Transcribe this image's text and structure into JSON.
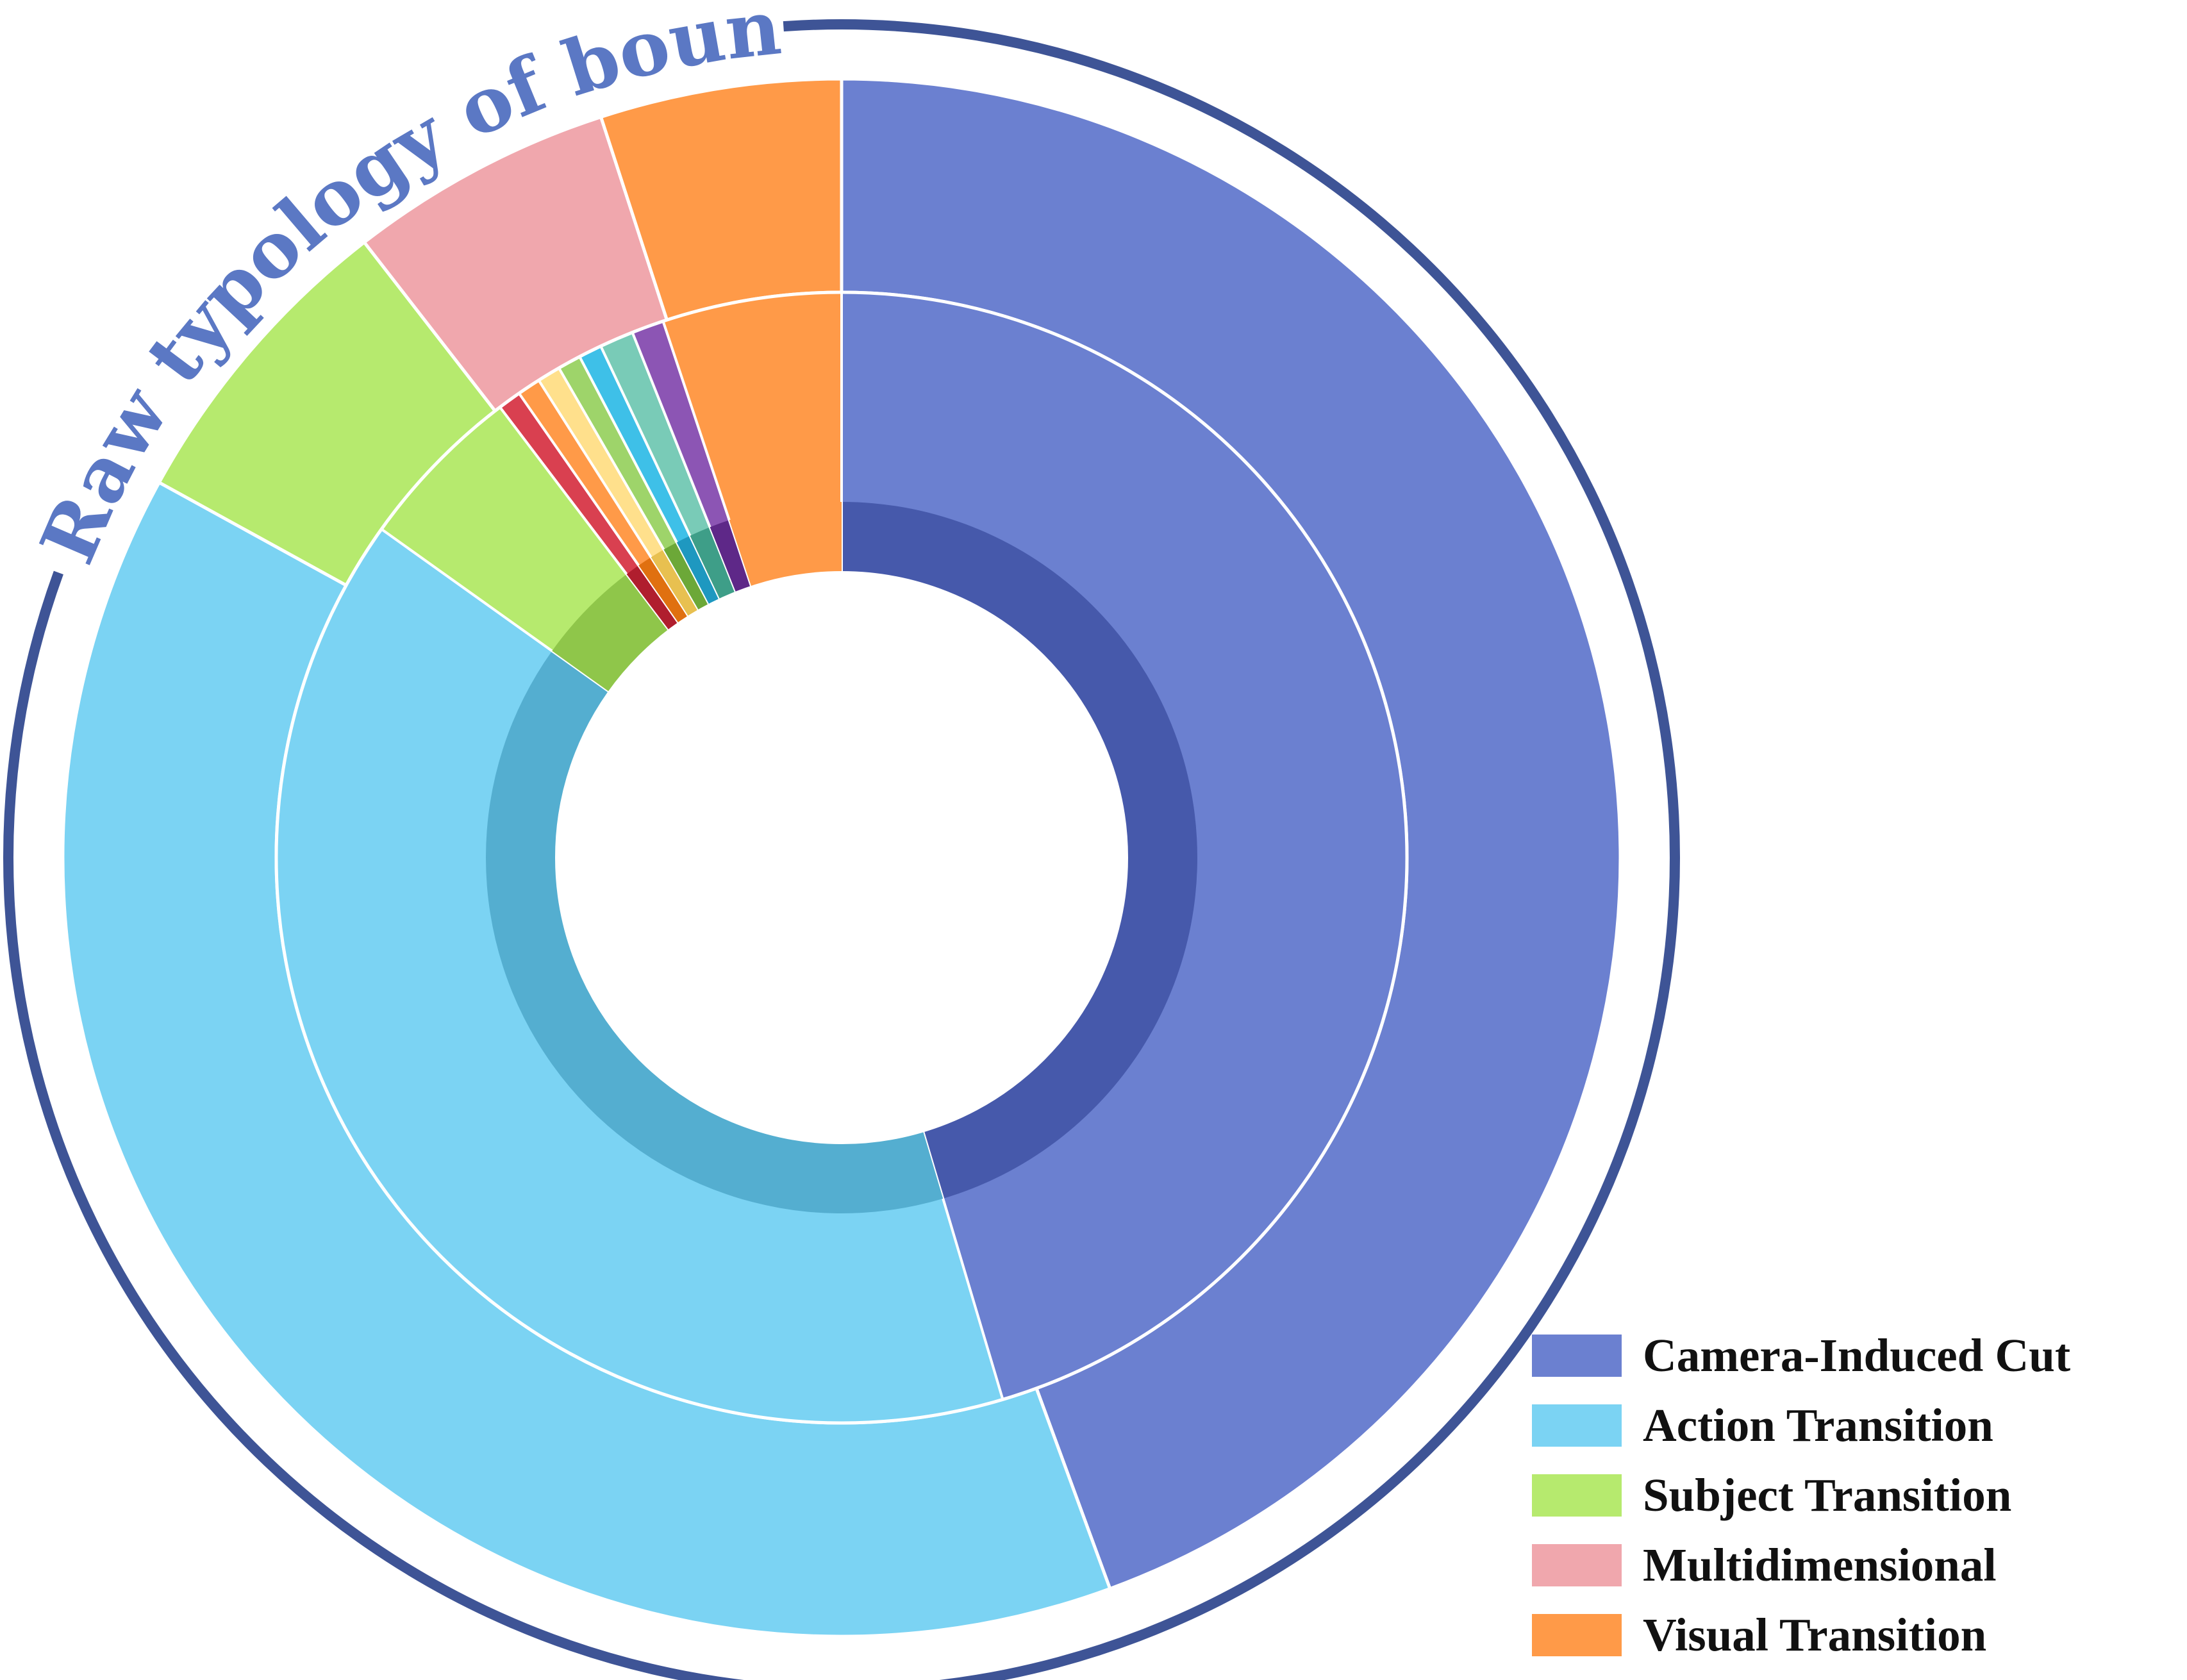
{
  "chart_data": {
    "type": "pie",
    "subtype": "nested-donut",
    "title": "Raw typology of boundaries",
    "legend_position": "bottom-right",
    "colors": {
      "title": "#5b78c4",
      "outer_arc": "#3e5496",
      "separator": "#ffffff"
    },
    "outer_ring": [
      {
        "name": "Camera-Induced Cut",
        "value": 44.4,
        "color": "#6b80d0"
      },
      {
        "name": "Action Transition",
        "value": 38.6,
        "color": "#7bd3f3"
      },
      {
        "name": "Subject Transition",
        "value": 6.5,
        "color": "#b6ea6e"
      },
      {
        "name": "Multidimensional",
        "value": 5.5,
        "color": "#f0a7ad"
      },
      {
        "name": "Visual Transition",
        "value": 5.0,
        "color": "#ff9a48"
      }
    ],
    "inner_ring": [
      {
        "parent": "Camera-Induced Cut",
        "value": 44.4,
        "color": "#6b80d0",
        "shade": "#4659ab"
      },
      {
        "parent": "Action Transition",
        "value": 38.6,
        "color": "#7bd3f3",
        "shade": "#54aed0"
      },
      {
        "parent": "Subject Transition",
        "value": 4.7,
        "color": "#b6ea6e",
        "shade": "#8fc64a"
      },
      {
        "parent": "Multidimensional",
        "value": 0.65,
        "color": "#d94050",
        "shade": "#b01e2e"
      },
      {
        "parent": "Multidimensional",
        "value": 0.65,
        "color": "#ff9a48",
        "shade": "#e07010"
      },
      {
        "parent": "Multidimensional",
        "value": 0.65,
        "color": "#ffe08c",
        "shade": "#e8c050"
      },
      {
        "parent": "Multidimensional",
        "value": 0.65,
        "color": "#9ed46a",
        "shade": "#6ca838"
      },
      {
        "parent": "Multidimensional",
        "value": 0.65,
        "color": "#3ec0e8",
        "shade": "#1e98c0"
      },
      {
        "parent": "Multidimensional",
        "value": 0.95,
        "color": "#79cbb7",
        "shade": "#3e9e88"
      },
      {
        "parent": "Multidimensional",
        "value": 0.9,
        "color": "#8c55b4",
        "shade": "#5e2888"
      },
      {
        "parent": "Visual Transition",
        "value": 5.0,
        "color": "#ff9a48",
        "shade": "#ff9a48"
      }
    ]
  }
}
